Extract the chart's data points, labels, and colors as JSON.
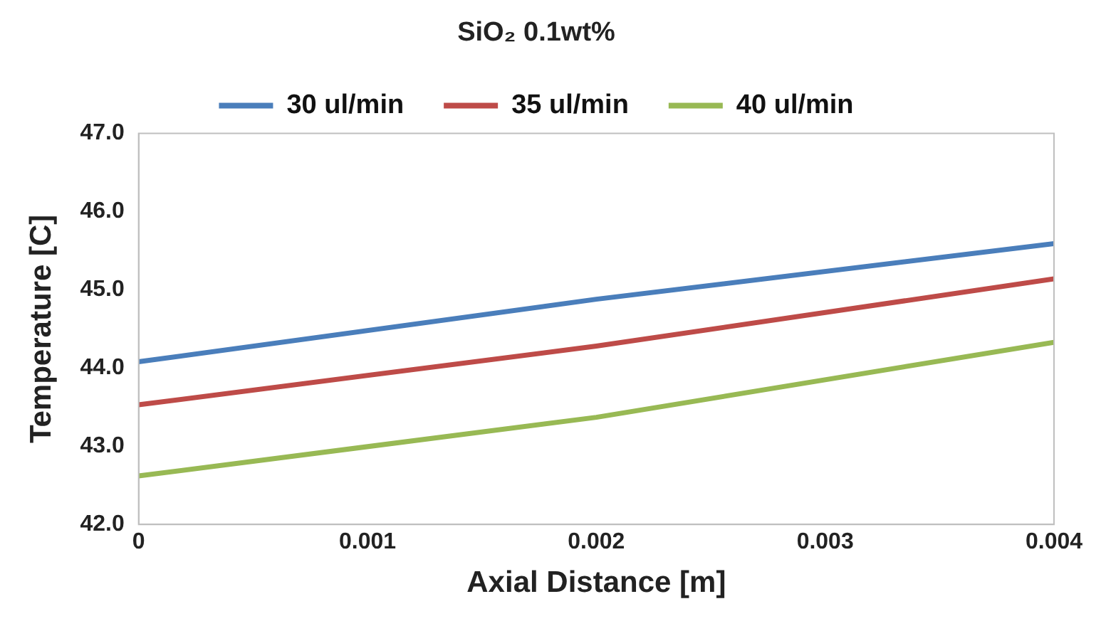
{
  "chart_data": {
    "type": "line",
    "title": "SiO₂ 0.1wt%",
    "xlabel": "Axial Distance [m]",
    "ylabel": "Temperature [C]",
    "x": [
      0,
      0.002,
      0.004
    ],
    "series": [
      {
        "name": "30 ul/min",
        "color": "#4a7ebb",
        "values": [
          44.08,
          44.88,
          45.59
        ]
      },
      {
        "name": "35 ul/min",
        "color": "#be4b48",
        "values": [
          43.53,
          44.28,
          45.14
        ]
      },
      {
        "name": "40 ul/min",
        "color": "#98b954",
        "values": [
          42.62,
          43.37,
          44.33
        ]
      }
    ],
    "xlim": [
      0,
      0.004
    ],
    "xticks": [
      0,
      0.001,
      0.002,
      0.003,
      0.004
    ],
    "ylim": [
      42,
      47
    ],
    "yticks": [
      {
        "value": 42,
        "label": "42.0"
      },
      {
        "value": 43,
        "label": "43.0"
      },
      {
        "value": 44,
        "label": "44.0"
      },
      {
        "value": 45,
        "label": "45.0"
      },
      {
        "value": 46,
        "label": "46.0"
      },
      {
        "value": 47,
        "label": "47.0"
      }
    ],
    "grid": false,
    "legend": "top",
    "marker": "none",
    "line_style": "solid"
  }
}
